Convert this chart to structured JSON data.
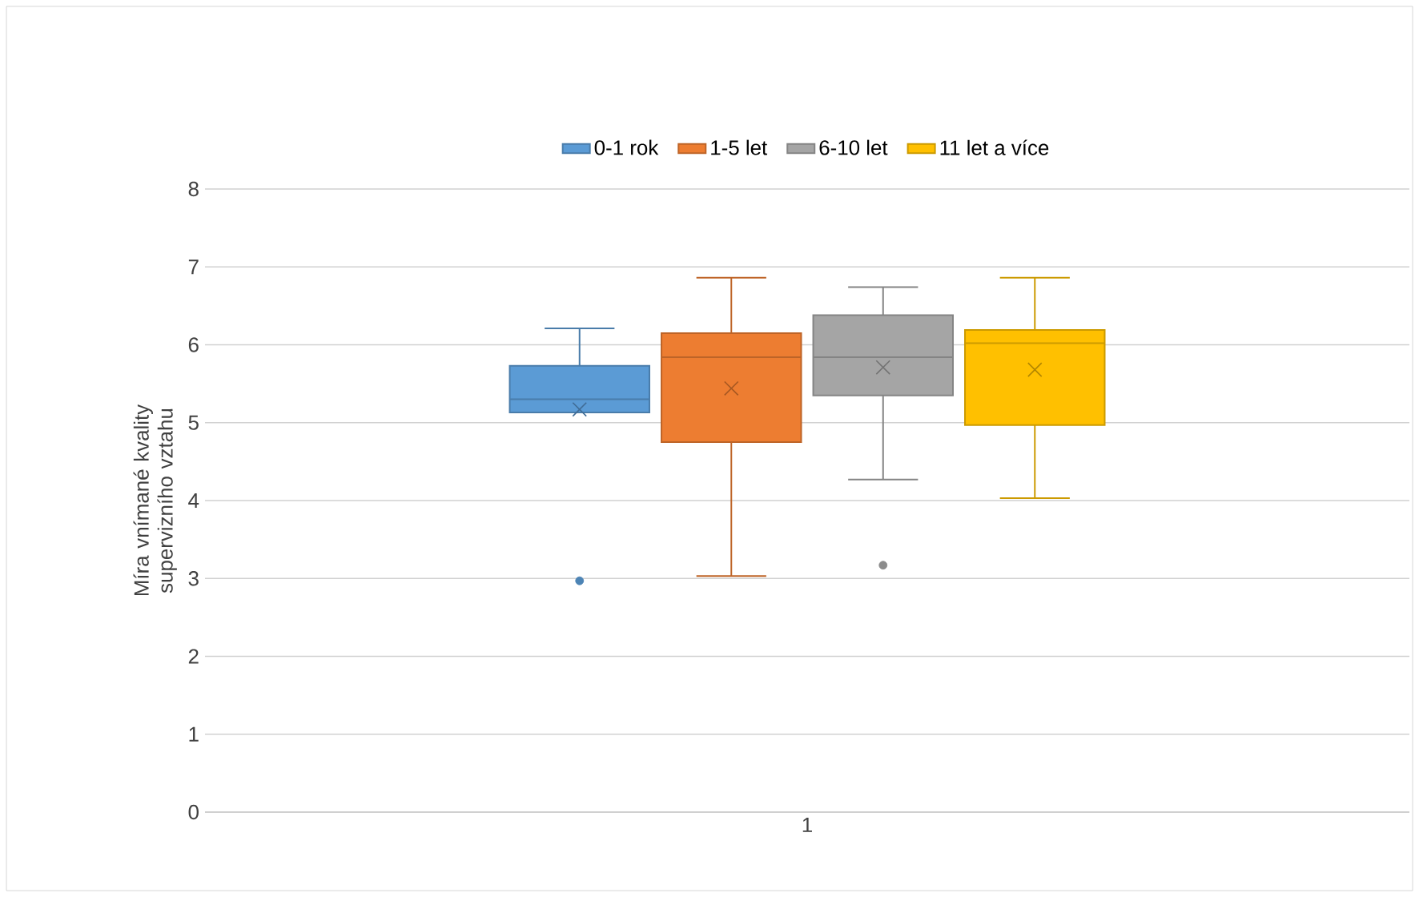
{
  "chart_data": {
    "type": "box",
    "ylabel": "Míra vnímané kvality supervizního vztahu",
    "categories": [
      "1"
    ],
    "ylim": [
      0,
      8
    ],
    "yticks": [
      0,
      1,
      2,
      3,
      4,
      5,
      6,
      7,
      8
    ],
    "grid": "y",
    "legend": "top",
    "series": [
      {
        "name": "0-1 rok",
        "color": "#5b9bd5",
        "boxes": [
          {
            "low": 5.13,
            "q1": 5.13,
            "median": 5.3,
            "q3": 5.73,
            "high": 6.21,
            "mean": 5.17,
            "outliers": [
              2.97
            ]
          }
        ]
      },
      {
        "name": "1-5 let",
        "color": "#ed7d31",
        "boxes": [
          {
            "low": 3.03,
            "q1": 4.75,
            "median": 5.84,
            "q3": 6.15,
            "high": 6.86,
            "mean": 5.44
          }
        ]
      },
      {
        "name": "6-10 let",
        "color": "#a5a5a5",
        "boxes": [
          {
            "low": 4.27,
            "q1": 5.35,
            "median": 5.84,
            "q3": 6.38,
            "high": 6.74,
            "mean": 5.71,
            "outliers": [
              3.17
            ]
          }
        ]
      },
      {
        "name": "11 let a více",
        "color": "#ffc000",
        "boxes": [
          {
            "low": 4.03,
            "q1": 4.97,
            "median": 6.02,
            "q3": 6.19,
            "high": 6.86,
            "mean": 5.68
          }
        ]
      }
    ]
  }
}
